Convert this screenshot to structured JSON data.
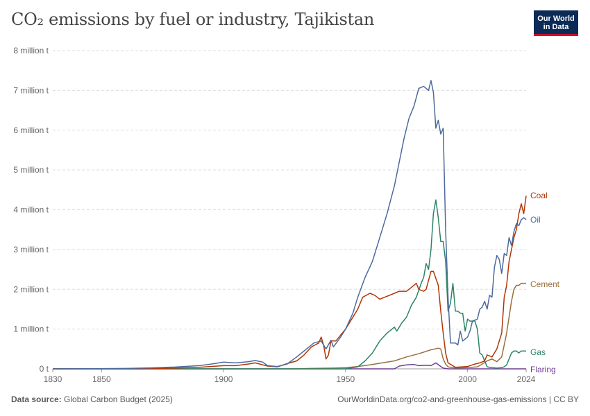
{
  "header": {
    "title": "CO₂ emissions by fuel or industry, Tajikistan",
    "logo_line1": "Our World",
    "logo_line2": "in Data"
  },
  "footer": {
    "source_label": "Data source:",
    "source_value": "Global Carbon Budget (2025)",
    "url": "OurWorldinData.org/co2-and-greenhouse-gas-emissions | CC BY"
  },
  "colors": {
    "Coal": "#b13507",
    "Oil": "#4c6a9c",
    "Cement": "#9a6f3e",
    "Gas": "#2c8465",
    "Flaring": "#6d3e91",
    "grid": "#dddddd",
    "axis_text": "#666666"
  },
  "chart_data": {
    "type": "line",
    "title": "CO₂ emissions by fuel or industry, Tajikistan",
    "xlabel": "",
    "ylabel": "",
    "xlim": [
      1830,
      2024
    ],
    "ylim": [
      0,
      8000000
    ],
    "x_ticks": [
      1830,
      1850,
      1900,
      1950,
      2000,
      2024
    ],
    "y_ticks": [
      {
        "value": 0,
        "label": "0 t"
      },
      {
        "value": 1000000,
        "label": "1 million t"
      },
      {
        "value": 2000000,
        "label": "2 million t"
      },
      {
        "value": 3000000,
        "label": "3 million t"
      },
      {
        "value": 4000000,
        "label": "4 million t"
      },
      {
        "value": 5000000,
        "label": "5 million t"
      },
      {
        "value": 6000000,
        "label": "6 million t"
      },
      {
        "value": 7000000,
        "label": "7 million t"
      },
      {
        "value": 8000000,
        "label": "8 million t"
      }
    ],
    "grid": true,
    "legend": "right-end labels",
    "series": [
      {
        "name": "Oil",
        "points": [
          [
            1830,
            0
          ],
          [
            1860,
            10000
          ],
          [
            1870,
            25000
          ],
          [
            1880,
            45000
          ],
          [
            1890,
            80000
          ],
          [
            1895,
            120000
          ],
          [
            1900,
            170000
          ],
          [
            1905,
            150000
          ],
          [
            1910,
            180000
          ],
          [
            1913,
            210000
          ],
          [
            1916,
            170000
          ],
          [
            1918,
            80000
          ],
          [
            1922,
            60000
          ],
          [
            1926,
            120000
          ],
          [
            1930,
            300000
          ],
          [
            1934,
            500000
          ],
          [
            1937,
            650000
          ],
          [
            1940,
            700000
          ],
          [
            1942,
            500000
          ],
          [
            1944,
            720000
          ],
          [
            1945,
            550000
          ],
          [
            1948,
            800000
          ],
          [
            1950,
            1000000
          ],
          [
            1953,
            1400000
          ],
          [
            1955,
            1800000
          ],
          [
            1958,
            2300000
          ],
          [
            1961,
            2700000
          ],
          [
            1964,
            3300000
          ],
          [
            1967,
            3900000
          ],
          [
            1970,
            4600000
          ],
          [
            1972,
            5200000
          ],
          [
            1974,
            5800000
          ],
          [
            1976,
            6300000
          ],
          [
            1978,
            6600000
          ],
          [
            1980,
            7050000
          ],
          [
            1982,
            7100000
          ],
          [
            1984,
            7000000
          ],
          [
            1985,
            7250000
          ],
          [
            1986,
            6950000
          ],
          [
            1987,
            6050000
          ],
          [
            1988,
            6250000
          ],
          [
            1989,
            5900000
          ],
          [
            1990,
            6050000
          ],
          [
            1991,
            3500000
          ],
          [
            1992,
            1800000
          ],
          [
            1993,
            650000
          ],
          [
            1995,
            650000
          ],
          [
            1996,
            600000
          ],
          [
            1997,
            950000
          ],
          [
            1998,
            700000
          ],
          [
            2000,
            800000
          ],
          [
            2001,
            950000
          ],
          [
            2002,
            1200000
          ],
          [
            2004,
            1250000
          ],
          [
            2005,
            1500000
          ],
          [
            2006,
            1550000
          ],
          [
            2007,
            1700000
          ],
          [
            2008,
            1500000
          ],
          [
            2009,
            1850000
          ],
          [
            2010,
            1800000
          ],
          [
            2011,
            2550000
          ],
          [
            2012,
            2850000
          ],
          [
            2013,
            2750000
          ],
          [
            2014,
            2400000
          ],
          [
            2015,
            2900000
          ],
          [
            2016,
            2850000
          ],
          [
            2017,
            3300000
          ],
          [
            2018,
            3100000
          ],
          [
            2019,
            3450000
          ],
          [
            2020,
            3650000
          ],
          [
            2021,
            3600000
          ],
          [
            2022,
            3750000
          ],
          [
            2023,
            3800000
          ],
          [
            2024,
            3750000
          ]
        ]
      },
      {
        "name": "Coal",
        "points": [
          [
            1830,
            0
          ],
          [
            1870,
            5000
          ],
          [
            1880,
            20000
          ],
          [
            1890,
            40000
          ],
          [
            1900,
            80000
          ],
          [
            1905,
            80000
          ],
          [
            1910,
            120000
          ],
          [
            1913,
            150000
          ],
          [
            1918,
            70000
          ],
          [
            1922,
            50000
          ],
          [
            1926,
            130000
          ],
          [
            1930,
            200000
          ],
          [
            1933,
            350000
          ],
          [
            1936,
            550000
          ],
          [
            1939,
            650000
          ],
          [
            1940,
            800000
          ],
          [
            1941,
            600000
          ],
          [
            1942,
            250000
          ],
          [
            1943,
            350000
          ],
          [
            1944,
            700000
          ],
          [
            1946,
            700000
          ],
          [
            1948,
            850000
          ],
          [
            1950,
            1000000
          ],
          [
            1952,
            1200000
          ],
          [
            1955,
            1500000
          ],
          [
            1957,
            1800000
          ],
          [
            1960,
            1900000
          ],
          [
            1962,
            1850000
          ],
          [
            1964,
            1750000
          ],
          [
            1966,
            1800000
          ],
          [
            1968,
            1850000
          ],
          [
            1970,
            1900000
          ],
          [
            1972,
            1950000
          ],
          [
            1975,
            1950000
          ],
          [
            1977,
            2050000
          ],
          [
            1979,
            2150000
          ],
          [
            1980,
            2000000
          ],
          [
            1982,
            1950000
          ],
          [
            1983,
            2000000
          ],
          [
            1985,
            2450000
          ],
          [
            1986,
            2450000
          ],
          [
            1988,
            2100000
          ],
          [
            1989,
            1450000
          ],
          [
            1990,
            900000
          ],
          [
            1991,
            400000
          ],
          [
            1992,
            150000
          ],
          [
            1995,
            40000
          ],
          [
            2000,
            60000
          ],
          [
            2003,
            120000
          ],
          [
            2005,
            150000
          ],
          [
            2007,
            200000
          ],
          [
            2008,
            350000
          ],
          [
            2010,
            300000
          ],
          [
            2012,
            500000
          ],
          [
            2013,
            700000
          ],
          [
            2014,
            900000
          ],
          [
            2015,
            1800000
          ],
          [
            2016,
            2100000
          ],
          [
            2017,
            2700000
          ],
          [
            2018,
            3000000
          ],
          [
            2019,
            3300000
          ],
          [
            2020,
            3500000
          ],
          [
            2021,
            3900000
          ],
          [
            2022,
            4150000
          ],
          [
            2023,
            3900000
          ],
          [
            2024,
            4350000
          ]
        ]
      },
      {
        "name": "Cement",
        "points": [
          [
            1830,
            0
          ],
          [
            1930,
            0
          ],
          [
            1935,
            10000
          ],
          [
            1945,
            20000
          ],
          [
            1950,
            30000
          ],
          [
            1955,
            60000
          ],
          [
            1960,
            100000
          ],
          [
            1965,
            150000
          ],
          [
            1970,
            200000
          ],
          [
            1975,
            300000
          ],
          [
            1980,
            380000
          ],
          [
            1985,
            480000
          ],
          [
            1988,
            520000
          ],
          [
            1989,
            500000
          ],
          [
            1990,
            250000
          ],
          [
            1991,
            120000
          ],
          [
            1992,
            50000
          ],
          [
            1995,
            20000
          ],
          [
            2000,
            30000
          ],
          [
            2004,
            50000
          ],
          [
            2006,
            120000
          ],
          [
            2008,
            200000
          ],
          [
            2010,
            250000
          ],
          [
            2012,
            180000
          ],
          [
            2014,
            300000
          ],
          [
            2015,
            600000
          ],
          [
            2016,
            900000
          ],
          [
            2017,
            1300000
          ],
          [
            2018,
            1700000
          ],
          [
            2019,
            2000000
          ],
          [
            2020,
            2100000
          ],
          [
            2021,
            2100000
          ],
          [
            2022,
            2150000
          ],
          [
            2023,
            2150000
          ],
          [
            2024,
            2150000
          ]
        ]
      },
      {
        "name": "Gas",
        "points": [
          [
            1830,
            0
          ],
          [
            1950,
            0
          ],
          [
            1955,
            50000
          ],
          [
            1958,
            200000
          ],
          [
            1961,
            400000
          ],
          [
            1964,
            700000
          ],
          [
            1967,
            900000
          ],
          [
            1970,
            1050000
          ],
          [
            1971,
            950000
          ],
          [
            1973,
            1150000
          ],
          [
            1975,
            1300000
          ],
          [
            1977,
            1600000
          ],
          [
            1979,
            1800000
          ],
          [
            1981,
            2150000
          ],
          [
            1982,
            2300000
          ],
          [
            1983,
            2650000
          ],
          [
            1984,
            2500000
          ],
          [
            1985,
            3000000
          ],
          [
            1986,
            3900000
          ],
          [
            1987,
            4250000
          ],
          [
            1988,
            3800000
          ],
          [
            1989,
            3200000
          ],
          [
            1990,
            3200000
          ],
          [
            1991,
            2700000
          ],
          [
            1992,
            1450000
          ],
          [
            1993,
            1650000
          ],
          [
            1994,
            2150000
          ],
          [
            1995,
            1450000
          ],
          [
            1996,
            1450000
          ],
          [
            1997,
            1400000
          ],
          [
            1998,
            1400000
          ],
          [
            1999,
            950000
          ],
          [
            2000,
            1250000
          ],
          [
            2001,
            1200000
          ],
          [
            2002,
            1200000
          ],
          [
            2003,
            1200000
          ],
          [
            2004,
            1000000
          ],
          [
            2005,
            400000
          ],
          [
            2006,
            350000
          ],
          [
            2007,
            200000
          ],
          [
            2008,
            50000
          ],
          [
            2010,
            30000
          ],
          [
            2012,
            20000
          ],
          [
            2014,
            30000
          ],
          [
            2015,
            50000
          ],
          [
            2016,
            100000
          ],
          [
            2017,
            250000
          ],
          [
            2018,
            400000
          ],
          [
            2019,
            450000
          ],
          [
            2020,
            450000
          ],
          [
            2021,
            400000
          ],
          [
            2022,
            450000
          ],
          [
            2023,
            450000
          ],
          [
            2024,
            450000
          ]
        ]
      },
      {
        "name": "Flaring",
        "points": [
          [
            1830,
            0
          ],
          [
            1970,
            0
          ],
          [
            1972,
            70000
          ],
          [
            1975,
            100000
          ],
          [
            1978,
            110000
          ],
          [
            1980,
            80000
          ],
          [
            1983,
            90000
          ],
          [
            1985,
            80000
          ],
          [
            1987,
            150000
          ],
          [
            1989,
            60000
          ],
          [
            1990,
            20000
          ],
          [
            1992,
            0
          ],
          [
            2024,
            0
          ]
        ]
      }
    ]
  }
}
